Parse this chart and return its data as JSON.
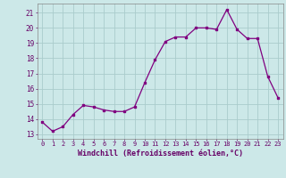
{
  "x": [
    0,
    1,
    2,
    3,
    4,
    5,
    6,
    7,
    8,
    9,
    10,
    11,
    12,
    13,
    14,
    15,
    16,
    17,
    18,
    19,
    20,
    21,
    22,
    23
  ],
  "y": [
    13.8,
    13.2,
    13.5,
    14.3,
    14.9,
    14.8,
    14.6,
    14.5,
    14.5,
    14.8,
    16.4,
    17.9,
    19.1,
    19.4,
    19.4,
    20.0,
    20.0,
    19.9,
    21.2,
    19.9,
    19.3,
    19.3,
    16.8,
    15.4
  ],
  "color": "#800080",
  "bg_color": "#cce8e8",
  "grid_color": "#aacccc",
  "xlabel": "Windchill (Refroidissement éolien,°C)",
  "ylabel_ticks": [
    13,
    14,
    15,
    16,
    17,
    18,
    19,
    20,
    21
  ],
  "xlim": [
    -0.5,
    23.5
  ],
  "ylim": [
    12.7,
    21.6
  ],
  "xticks": [
    0,
    1,
    2,
    3,
    4,
    5,
    6,
    7,
    8,
    9,
    10,
    11,
    12,
    13,
    14,
    15,
    16,
    17,
    18,
    19,
    20,
    21,
    22,
    23
  ],
  "marker": "s",
  "markersize": 2,
  "linewidth": 0.9,
  "tick_fontsize": 5,
  "xlabel_fontsize": 6,
  "ytick_fontsize": 5.5
}
